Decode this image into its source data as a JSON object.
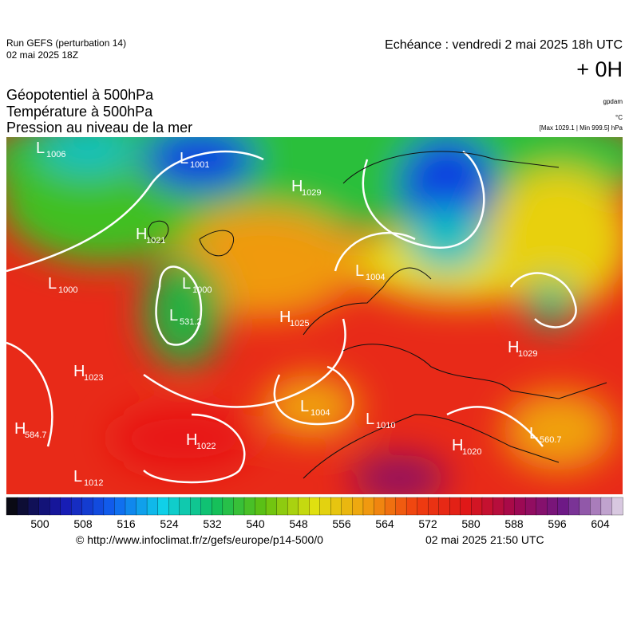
{
  "header": {
    "run": "Run GEFS (perturbation 14)",
    "run_date": "02 mai 2025 18Z",
    "echeance": "Echéance : vendredi 2 mai 2025 18h UTC",
    "offset": "+ 0H",
    "line1": "Géopotentiel à 500hPa",
    "line2": "Température à 500hPa",
    "line3": "Pression au niveau de la mer",
    "unit1": "gpdam",
    "unit2": "°C",
    "unit3": "[Max 1029.1 | Min 999.5] hPa"
  },
  "map": {
    "centers": [
      {
        "letter": "L",
        "value": "1006"
      },
      {
        "letter": "L",
        "value": "1001"
      },
      {
        "letter": "H",
        "value": "1029"
      },
      {
        "letter": "H",
        "value": "1021"
      },
      {
        "letter": "L",
        "value": "1000"
      },
      {
        "letter": "L",
        "value": "1000"
      },
      {
        "letter": "L",
        "value": "531.2"
      },
      {
        "letter": "H",
        "value": "1025"
      },
      {
        "letter": "L",
        "value": "1004"
      },
      {
        "letter": "H",
        "value": "1023"
      },
      {
        "letter": "H",
        "value": "1022"
      },
      {
        "letter": "H",
        "value": "584.7"
      },
      {
        "letter": "L",
        "value": "1012"
      },
      {
        "letter": "L",
        "value": "1010"
      },
      {
        "letter": "H",
        "value": "1020"
      },
      {
        "letter": "L",
        "value": "560.7"
      },
      {
        "letter": "H",
        "value": "1029"
      },
      {
        "letter": "L",
        "value": "1004"
      }
    ]
  },
  "colorbar": {
    "stops": [
      "#0a0a14",
      "#1818b0",
      "#1060f0",
      "#10d0e8",
      "#10c060",
      "#60c010",
      "#e0e010",
      "#f0a010",
      "#f04010",
      "#e01818",
      "#a00850",
      "#6a1a8a",
      "#d8c8e0"
    ],
    "ticks": [
      "500",
      "508",
      "516",
      "524",
      "532",
      "540",
      "548",
      "556",
      "564",
      "572",
      "580",
      "588",
      "596",
      "604"
    ]
  },
  "footer": {
    "url": "© http://www.infoclimat.fr/z/gefs/europe/p14-500/0",
    "time": "02 mai 2025 21:50 UTC"
  }
}
